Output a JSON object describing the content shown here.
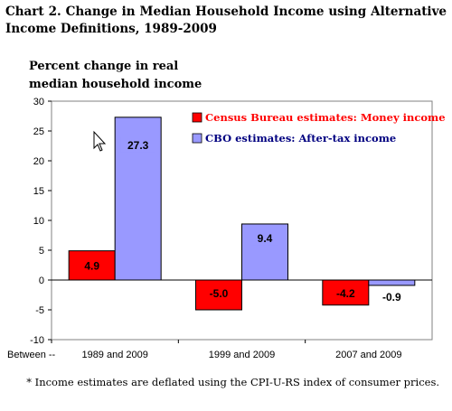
{
  "title": "Chart 2.  Change in Median Household Income using Alternative Income Definitions,  1989-2009",
  "ylabel_line1": "Percent change in real",
  "ylabel_line2": "median household  income",
  "footnote": "* Income estimates are deflated using the CPI-U-RS index of consumer prices.",
  "colors": {
    "census": "#ff0000",
    "cbo": "#9999ff",
    "census_text": "#ff0000",
    "cbo_text": "#000080"
  },
  "chart_data": {
    "type": "bar",
    "title": "Chart 2.  Change in Median Household Income using Alternative Income Definitions,  1989-2009",
    "ylabel": "Percent change in real median household  income",
    "xprefix": "Between --",
    "categories": [
      "1989 and 2009",
      "1999 and 2009",
      "2007 and 2009"
    ],
    "series": [
      {
        "name": "Census Bureau estimates: Money income",
        "values": [
          4.9,
          -5.0,
          -4.2
        ],
        "labels": [
          "4.9",
          "-5.0",
          "-4.2"
        ]
      },
      {
        "name": "CBO estimates: After-tax income",
        "values": [
          27.3,
          9.4,
          -0.9
        ],
        "labels": [
          "27.3",
          "9.4",
          "-0.9"
        ]
      }
    ],
    "ylim": [
      -10,
      30
    ],
    "yticks": [
      -10,
      -5,
      0,
      5,
      10,
      15,
      20,
      25,
      30
    ],
    "grid": false,
    "legend": "top-right"
  }
}
